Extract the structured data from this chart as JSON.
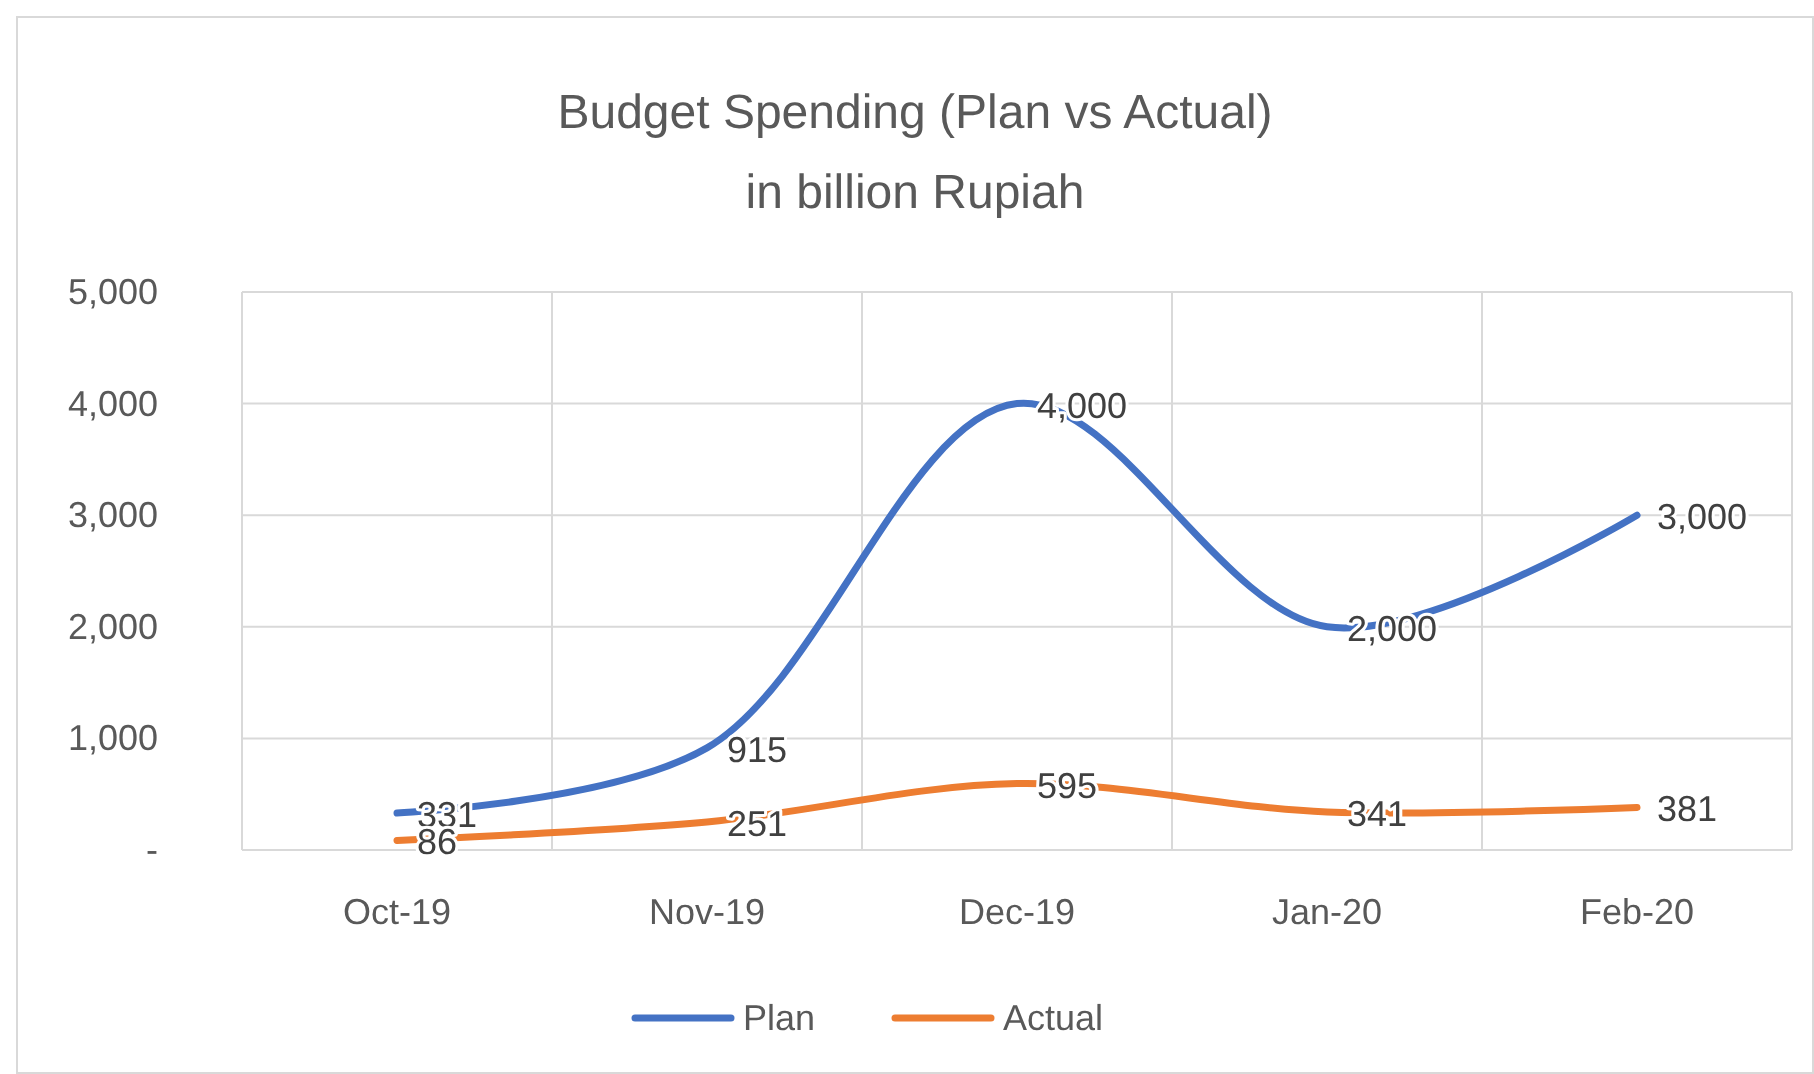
{
  "chart_data": {
    "type": "line",
    "title": "Budget Spending (Plan vs Actual)",
    "subtitle": "in billion Rupiah",
    "categories": [
      "Oct-19",
      "Nov-19",
      "Dec-19",
      "Jan-20",
      "Feb-20"
    ],
    "series": [
      {
        "name": "Plan",
        "color": "#4472c4",
        "values": [
          331,
          915,
          4000,
          2000,
          3000
        ],
        "value_labels": [
          "331",
          "915",
          "4,000",
          "2,000",
          "3,000"
        ]
      },
      {
        "name": "Actual",
        "color": "#ed7d31",
        "values": [
          86,
          251,
          595,
          341,
          381
        ],
        "value_labels": [
          "86",
          "251",
          "595",
          "341",
          "381"
        ]
      }
    ],
    "ylim": [
      0,
      5000
    ],
    "yticks": [
      {
        "value": 0,
        "label": "-"
      },
      {
        "value": 1000,
        "label": "1,000"
      },
      {
        "value": 2000,
        "label": "2,000"
      },
      {
        "value": 3000,
        "label": "3,000"
      },
      {
        "value": 4000,
        "label": "4,000"
      },
      {
        "value": 5000,
        "label": "5,000"
      }
    ],
    "grid": true,
    "legend": "bottom",
    "marker": "none",
    "line_style": "solid"
  }
}
